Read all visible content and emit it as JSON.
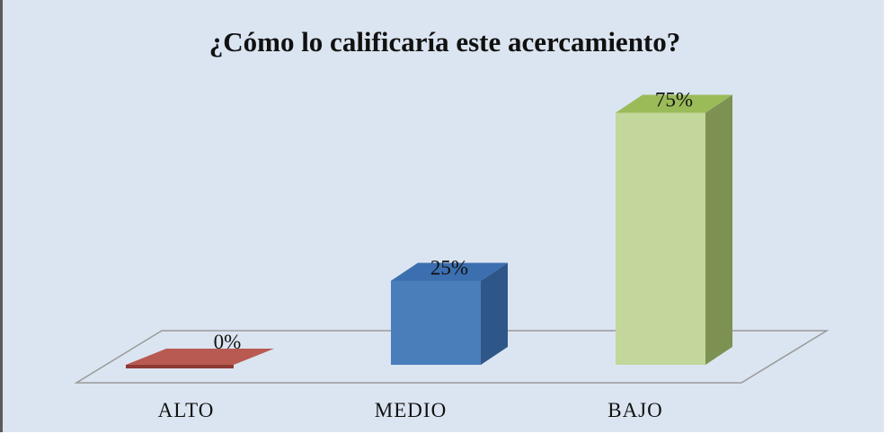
{
  "chart_data": {
    "type": "bar",
    "title": "¿Cómo lo calificaría  este acercamiento?",
    "categories": [
      "ALTO",
      "MEDIO",
      "BAJO"
    ],
    "values": [
      0,
      25,
      75
    ],
    "value_labels": [
      "0%",
      "25%",
      "75%"
    ],
    "ylim": [
      0,
      100
    ],
    "grid": false,
    "legend": "none",
    "style": "3d-column",
    "colors": [
      {
        "front": "#c0504d",
        "top": "#b85a52",
        "side": "#8e3a36"
      },
      {
        "front": "#4a7ebb",
        "top": "#3c6fb0",
        "side": "#2e5688"
      },
      {
        "front": "#c3d69b",
        "top": "#9bbb59",
        "side": "#7d9153"
      }
    ]
  }
}
